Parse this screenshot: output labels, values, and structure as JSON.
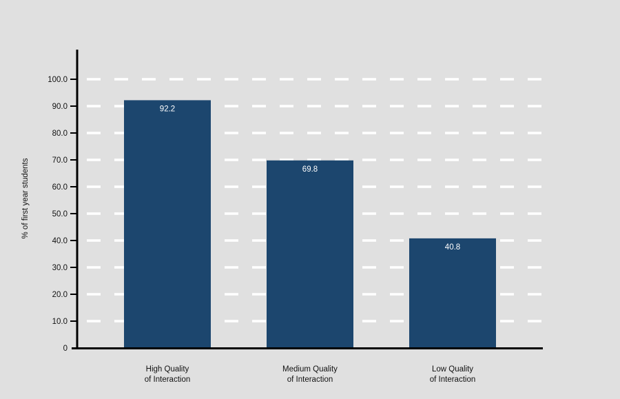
{
  "chart_data": {
    "type": "bar",
    "title": "",
    "xlabel": "",
    "ylabel": "% of first year students",
    "categories": [
      [
        "High Quality",
        "of Interaction"
      ],
      [
        "Medium Quality",
        "of Interaction"
      ],
      [
        "Low Quality",
        "of Interaction"
      ]
    ],
    "values": [
      92.2,
      69.8,
      40.8
    ],
    "data_labels": [
      "92.2",
      "69.8",
      "40.8"
    ],
    "y_ticks": [
      0,
      10,
      20,
      30,
      40,
      50,
      60,
      70,
      80,
      90,
      100
    ],
    "y_tick_labels": [
      "0",
      "10.0",
      "20.0",
      "30.0",
      "40.0",
      "50.0",
      "60.0",
      "70.0",
      "80.0",
      "90.0",
      "100.0"
    ],
    "ylim": [
      0,
      100
    ],
    "grid": "dashed horizontal",
    "legend": "none",
    "colors": {
      "bar": "#1c466e",
      "grid": "#ffffff",
      "axis": "#000000",
      "background": "#e0e0e0"
    }
  }
}
